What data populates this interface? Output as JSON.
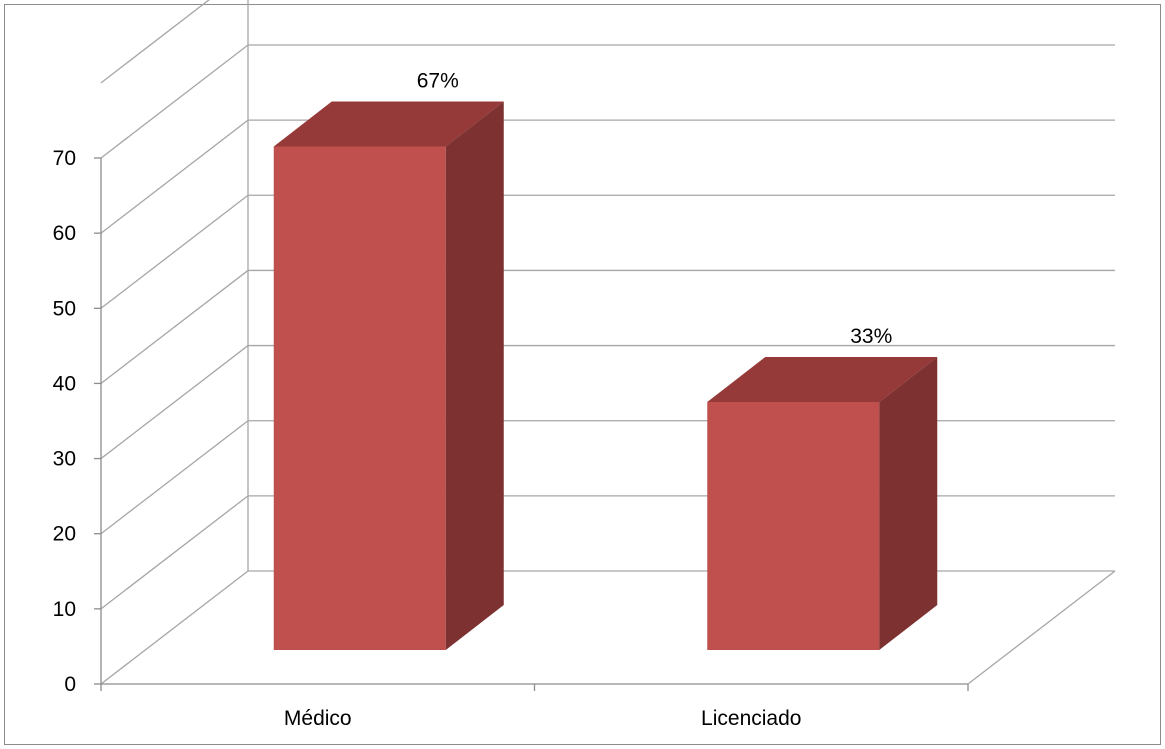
{
  "chart_data": {
    "type": "bar",
    "style": "3d-column",
    "categories": [
      "Médico",
      "Licenciado"
    ],
    "values": [
      67,
      33
    ],
    "data_labels": [
      "67%",
      "33%"
    ],
    "ylim": [
      0,
      70
    ],
    "yticks": [
      0,
      10,
      20,
      30,
      40,
      50,
      60,
      70
    ],
    "grid": true,
    "legend": "none",
    "bar_color": "#c0504d",
    "bar_top_color": "#953a39",
    "bar_side_color": "#7d3130",
    "gridline_color": "#a6a6a6",
    "axis_color": "#8c8c8c"
  }
}
